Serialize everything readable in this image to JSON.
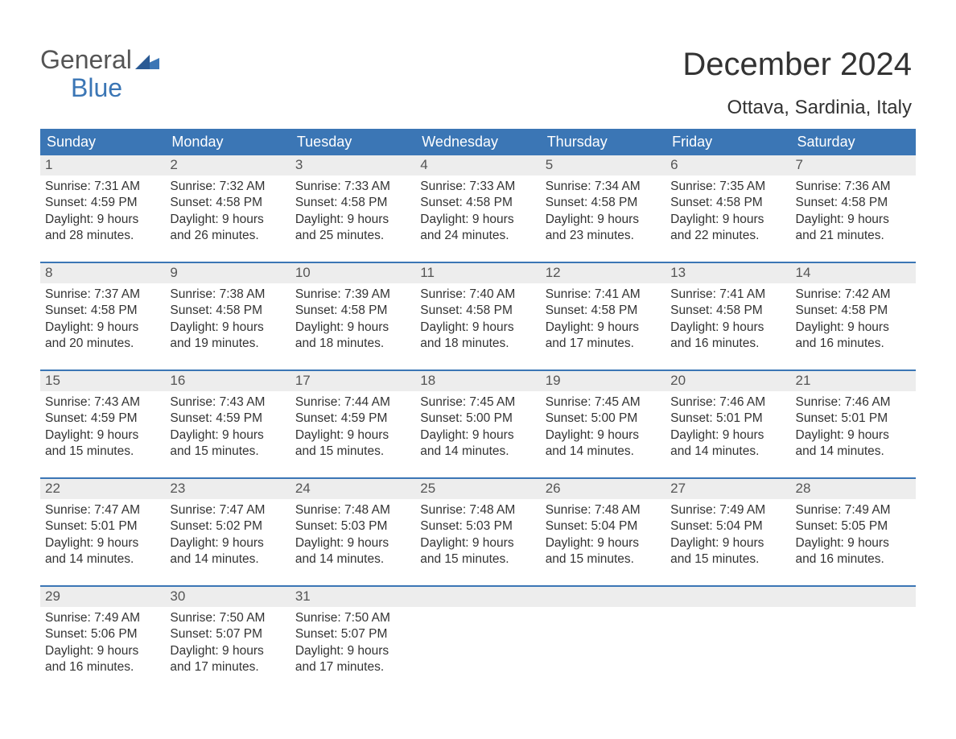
{
  "logo": {
    "general": "General",
    "blue": "Blue"
  },
  "title": "December 2024",
  "subtitle": "Ottava, Sardinia, Italy",
  "colors": {
    "header_bg": "#3b76b5",
    "header_text": "#ffffff",
    "daynum_bg": "#ededed",
    "week_border": "#3b76b5",
    "text": "#333333",
    "logo_blue": "#3b76b5"
  },
  "fonts": {
    "title_size": 40,
    "subtitle_size": 24,
    "header_size": 18,
    "daynum_size": 17,
    "body_size": 15.5,
    "logo_size": 32
  },
  "layout": {
    "columns": 7,
    "rows": 5,
    "day_min_height": 132
  },
  "weekday_headers": [
    "Sunday",
    "Monday",
    "Tuesday",
    "Wednesday",
    "Thursday",
    "Friday",
    "Saturday"
  ],
  "weeks": [
    [
      {
        "num": "1",
        "sunrise": "Sunrise: 7:31 AM",
        "sunset": "Sunset: 4:59 PM",
        "daylight1": "Daylight: 9 hours",
        "daylight2": "and 28 minutes."
      },
      {
        "num": "2",
        "sunrise": "Sunrise: 7:32 AM",
        "sunset": "Sunset: 4:58 PM",
        "daylight1": "Daylight: 9 hours",
        "daylight2": "and 26 minutes."
      },
      {
        "num": "3",
        "sunrise": "Sunrise: 7:33 AM",
        "sunset": "Sunset: 4:58 PM",
        "daylight1": "Daylight: 9 hours",
        "daylight2": "and 25 minutes."
      },
      {
        "num": "4",
        "sunrise": "Sunrise: 7:33 AM",
        "sunset": "Sunset: 4:58 PM",
        "daylight1": "Daylight: 9 hours",
        "daylight2": "and 24 minutes."
      },
      {
        "num": "5",
        "sunrise": "Sunrise: 7:34 AM",
        "sunset": "Sunset: 4:58 PM",
        "daylight1": "Daylight: 9 hours",
        "daylight2": "and 23 minutes."
      },
      {
        "num": "6",
        "sunrise": "Sunrise: 7:35 AM",
        "sunset": "Sunset: 4:58 PM",
        "daylight1": "Daylight: 9 hours",
        "daylight2": "and 22 minutes."
      },
      {
        "num": "7",
        "sunrise": "Sunrise: 7:36 AM",
        "sunset": "Sunset: 4:58 PM",
        "daylight1": "Daylight: 9 hours",
        "daylight2": "and 21 minutes."
      }
    ],
    [
      {
        "num": "8",
        "sunrise": "Sunrise: 7:37 AM",
        "sunset": "Sunset: 4:58 PM",
        "daylight1": "Daylight: 9 hours",
        "daylight2": "and 20 minutes."
      },
      {
        "num": "9",
        "sunrise": "Sunrise: 7:38 AM",
        "sunset": "Sunset: 4:58 PM",
        "daylight1": "Daylight: 9 hours",
        "daylight2": "and 19 minutes."
      },
      {
        "num": "10",
        "sunrise": "Sunrise: 7:39 AM",
        "sunset": "Sunset: 4:58 PM",
        "daylight1": "Daylight: 9 hours",
        "daylight2": "and 18 minutes."
      },
      {
        "num": "11",
        "sunrise": "Sunrise: 7:40 AM",
        "sunset": "Sunset: 4:58 PM",
        "daylight1": "Daylight: 9 hours",
        "daylight2": "and 18 minutes."
      },
      {
        "num": "12",
        "sunrise": "Sunrise: 7:41 AM",
        "sunset": "Sunset: 4:58 PM",
        "daylight1": "Daylight: 9 hours",
        "daylight2": "and 17 minutes."
      },
      {
        "num": "13",
        "sunrise": "Sunrise: 7:41 AM",
        "sunset": "Sunset: 4:58 PM",
        "daylight1": "Daylight: 9 hours",
        "daylight2": "and 16 minutes."
      },
      {
        "num": "14",
        "sunrise": "Sunrise: 7:42 AM",
        "sunset": "Sunset: 4:58 PM",
        "daylight1": "Daylight: 9 hours",
        "daylight2": "and 16 minutes."
      }
    ],
    [
      {
        "num": "15",
        "sunrise": "Sunrise: 7:43 AM",
        "sunset": "Sunset: 4:59 PM",
        "daylight1": "Daylight: 9 hours",
        "daylight2": "and 15 minutes."
      },
      {
        "num": "16",
        "sunrise": "Sunrise: 7:43 AM",
        "sunset": "Sunset: 4:59 PM",
        "daylight1": "Daylight: 9 hours",
        "daylight2": "and 15 minutes."
      },
      {
        "num": "17",
        "sunrise": "Sunrise: 7:44 AM",
        "sunset": "Sunset: 4:59 PM",
        "daylight1": "Daylight: 9 hours",
        "daylight2": "and 15 minutes."
      },
      {
        "num": "18",
        "sunrise": "Sunrise: 7:45 AM",
        "sunset": "Sunset: 5:00 PM",
        "daylight1": "Daylight: 9 hours",
        "daylight2": "and 14 minutes."
      },
      {
        "num": "19",
        "sunrise": "Sunrise: 7:45 AM",
        "sunset": "Sunset: 5:00 PM",
        "daylight1": "Daylight: 9 hours",
        "daylight2": "and 14 minutes."
      },
      {
        "num": "20",
        "sunrise": "Sunrise: 7:46 AM",
        "sunset": "Sunset: 5:01 PM",
        "daylight1": "Daylight: 9 hours",
        "daylight2": "and 14 minutes."
      },
      {
        "num": "21",
        "sunrise": "Sunrise: 7:46 AM",
        "sunset": "Sunset: 5:01 PM",
        "daylight1": "Daylight: 9 hours",
        "daylight2": "and 14 minutes."
      }
    ],
    [
      {
        "num": "22",
        "sunrise": "Sunrise: 7:47 AM",
        "sunset": "Sunset: 5:01 PM",
        "daylight1": "Daylight: 9 hours",
        "daylight2": "and 14 minutes."
      },
      {
        "num": "23",
        "sunrise": "Sunrise: 7:47 AM",
        "sunset": "Sunset: 5:02 PM",
        "daylight1": "Daylight: 9 hours",
        "daylight2": "and 14 minutes."
      },
      {
        "num": "24",
        "sunrise": "Sunrise: 7:48 AM",
        "sunset": "Sunset: 5:03 PM",
        "daylight1": "Daylight: 9 hours",
        "daylight2": "and 14 minutes."
      },
      {
        "num": "25",
        "sunrise": "Sunrise: 7:48 AM",
        "sunset": "Sunset: 5:03 PM",
        "daylight1": "Daylight: 9 hours",
        "daylight2": "and 15 minutes."
      },
      {
        "num": "26",
        "sunrise": "Sunrise: 7:48 AM",
        "sunset": "Sunset: 5:04 PM",
        "daylight1": "Daylight: 9 hours",
        "daylight2": "and 15 minutes."
      },
      {
        "num": "27",
        "sunrise": "Sunrise: 7:49 AM",
        "sunset": "Sunset: 5:04 PM",
        "daylight1": "Daylight: 9 hours",
        "daylight2": "and 15 minutes."
      },
      {
        "num": "28",
        "sunrise": "Sunrise: 7:49 AM",
        "sunset": "Sunset: 5:05 PM",
        "daylight1": "Daylight: 9 hours",
        "daylight2": "and 16 minutes."
      }
    ],
    [
      {
        "num": "29",
        "sunrise": "Sunrise: 7:49 AM",
        "sunset": "Sunset: 5:06 PM",
        "daylight1": "Daylight: 9 hours",
        "daylight2": "and 16 minutes."
      },
      {
        "num": "30",
        "sunrise": "Sunrise: 7:50 AM",
        "sunset": "Sunset: 5:07 PM",
        "daylight1": "Daylight: 9 hours",
        "daylight2": "and 17 minutes."
      },
      {
        "num": "31",
        "sunrise": "Sunrise: 7:50 AM",
        "sunset": "Sunset: 5:07 PM",
        "daylight1": "Daylight: 9 hours",
        "daylight2": "and 17 minutes."
      },
      {
        "empty": true
      },
      {
        "empty": true
      },
      {
        "empty": true
      },
      {
        "empty": true
      }
    ]
  ]
}
